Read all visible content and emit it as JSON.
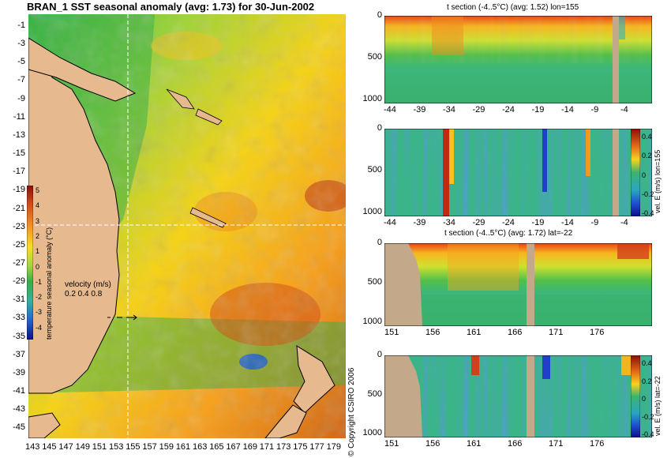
{
  "main_map": {
    "title": "BRAN_1 SST seasonal anomaly (avg: 1.73) for 30-Jun-2002",
    "y_ticks": [
      "-1",
      "-3",
      "-5",
      "-7",
      "-9",
      "-11",
      "-13",
      "-15",
      "-17",
      "-19",
      "-21",
      "-23",
      "-25",
      "-27",
      "-29",
      "-31",
      "-33",
      "-35",
      "-37",
      "-39",
      "-41",
      "-43",
      "-45"
    ],
    "x_ticks": [
      "143",
      "145",
      "147",
      "149",
      "151",
      "153",
      "155",
      "157",
      "159",
      "161",
      "163",
      "165",
      "167",
      "169",
      "171",
      "173",
      "175",
      "177",
      "179"
    ],
    "colorbar": {
      "label": "temperature seasonal anomaly (°C)",
      "ticks": [
        "5",
        "4",
        "3",
        "2",
        "1",
        "0",
        "-1",
        "-2",
        "-3",
        "-4"
      ]
    },
    "velocity_legend": {
      "label": "velocity (m/s)",
      "values": "0.2 0.4 0.8"
    }
  },
  "copyright": "© Copyright CSIRO 2006",
  "panels": [
    {
      "id": "lon-temp",
      "title": "t section (-4..5°C) (avg: 1.52) lon=155",
      "y_ticks": [
        "0",
        "500",
        "1000"
      ],
      "x_ticks": [
        "-44",
        "-39",
        "-34",
        "-29",
        "-24",
        "-19",
        "-14",
        "-9",
        "-4"
      ]
    },
    {
      "id": "lon-vel",
      "title": "",
      "y_ticks": [
        "0",
        "500",
        "1000"
      ],
      "x_ticks": [
        "-44",
        "-39",
        "-34",
        "-29",
        "-24",
        "-19",
        "-14",
        "-9",
        "-4"
      ],
      "colorbar_label": "vel. E (m/s) lon=155",
      "colorbar_ticks": [
        "0.4",
        "0.2",
        "0",
        "-0.2",
        "-0.4"
      ]
    },
    {
      "id": "lat-temp",
      "title": "t section (-4..5°C) (avg: 1.72) lat=-22",
      "y_ticks": [
        "0",
        "500",
        "1000"
      ],
      "x_ticks": [
        "151",
        "156",
        "161",
        "166",
        "171",
        "176"
      ]
    },
    {
      "id": "lat-vel",
      "title": "",
      "y_ticks": [
        "0",
        "500",
        "1000"
      ],
      "x_ticks": [
        "151",
        "156",
        "161",
        "166",
        "171",
        "176"
      ],
      "colorbar_label": "vel. E (m/s) lat=-22",
      "colorbar_ticks": [
        "0.4",
        "0.2",
        "0",
        "-0.2",
        "-0.4"
      ]
    }
  ],
  "colors": {
    "land": "#e7b98f",
    "section_land": "#c4a88a",
    "dashed_line": "#ffffff"
  }
}
